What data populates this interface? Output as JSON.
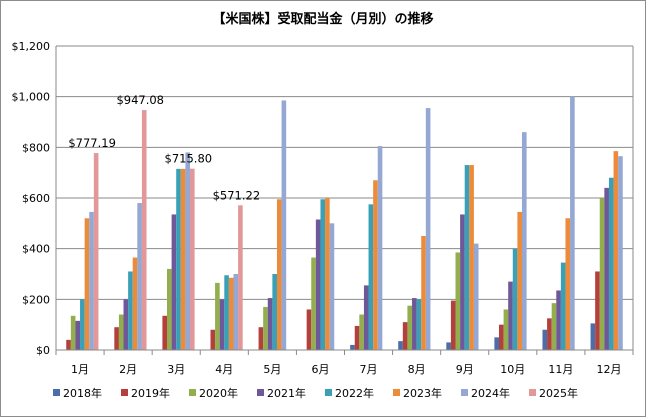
{
  "chart_data": {
    "type": "bar",
    "title": "【米国株】受取配当金（月別）の推移",
    "xlabel": "",
    "ylabel": "",
    "ylim": [
      0,
      1200
    ],
    "yticks": [
      "$0",
      "$200",
      "$400",
      "$600",
      "$800",
      "$1,000",
      "$1,200"
    ],
    "ytick_values": [
      0,
      200,
      400,
      600,
      800,
      1000,
      1200
    ],
    "grid": true,
    "legend_position": "bottom",
    "categories": [
      "1月",
      "2月",
      "3月",
      "4月",
      "5月",
      "6月",
      "7月",
      "8月",
      "9月",
      "10月",
      "11月",
      "12月"
    ],
    "series": [
      {
        "name": "2018年",
        "color": "#4a6fa8",
        "values": [
          null,
          null,
          null,
          null,
          null,
          null,
          20,
          35,
          30,
          50,
          80,
          105
        ]
      },
      {
        "name": "2019年",
        "color": "#b3403c",
        "values": [
          40,
          90,
          135,
          80,
          90,
          160,
          95,
          110,
          195,
          100,
          125,
          310
        ]
      },
      {
        "name": "2020年",
        "color": "#93ae4d",
        "values": [
          135,
          140,
          320,
          265,
          170,
          365,
          140,
          175,
          385,
          160,
          185,
          600
        ]
      },
      {
        "name": "2021年",
        "color": "#6f5897",
        "values": [
          115,
          200,
          535,
          200,
          205,
          515,
          255,
          205,
          535,
          270,
          235,
          640
        ]
      },
      {
        "name": "2022年",
        "color": "#3aa0b8",
        "values": [
          200,
          310,
          715,
          295,
          300,
          595,
          575,
          200,
          730,
          400,
          345,
          680
        ]
      },
      {
        "name": "2023年",
        "color": "#ec8c3a",
        "values": [
          520,
          365,
          715,
          285,
          595,
          600,
          670,
          450,
          730,
          545,
          520,
          785
        ]
      },
      {
        "name": "2024年",
        "color": "#94a8d3",
        "values": [
          545,
          580,
          780,
          300,
          985,
          500,
          805,
          955,
          420,
          860,
          1000,
          765
        ]
      },
      {
        "name": "2025年",
        "color": "#e29899",
        "values": [
          777.19,
          947.08,
          715.8,
          571.22,
          null,
          null,
          null,
          null,
          null,
          null,
          null,
          null
        ]
      }
    ],
    "annotations": [
      {
        "category": "1月",
        "series": "2025年",
        "text": "$777.19"
      },
      {
        "category": "2月",
        "series": "2025年",
        "text": "$947.08"
      },
      {
        "category": "3月",
        "series": "2025年",
        "text": "$715.80"
      },
      {
        "category": "4月",
        "series": "2025年",
        "text": "$571.22"
      }
    ]
  }
}
